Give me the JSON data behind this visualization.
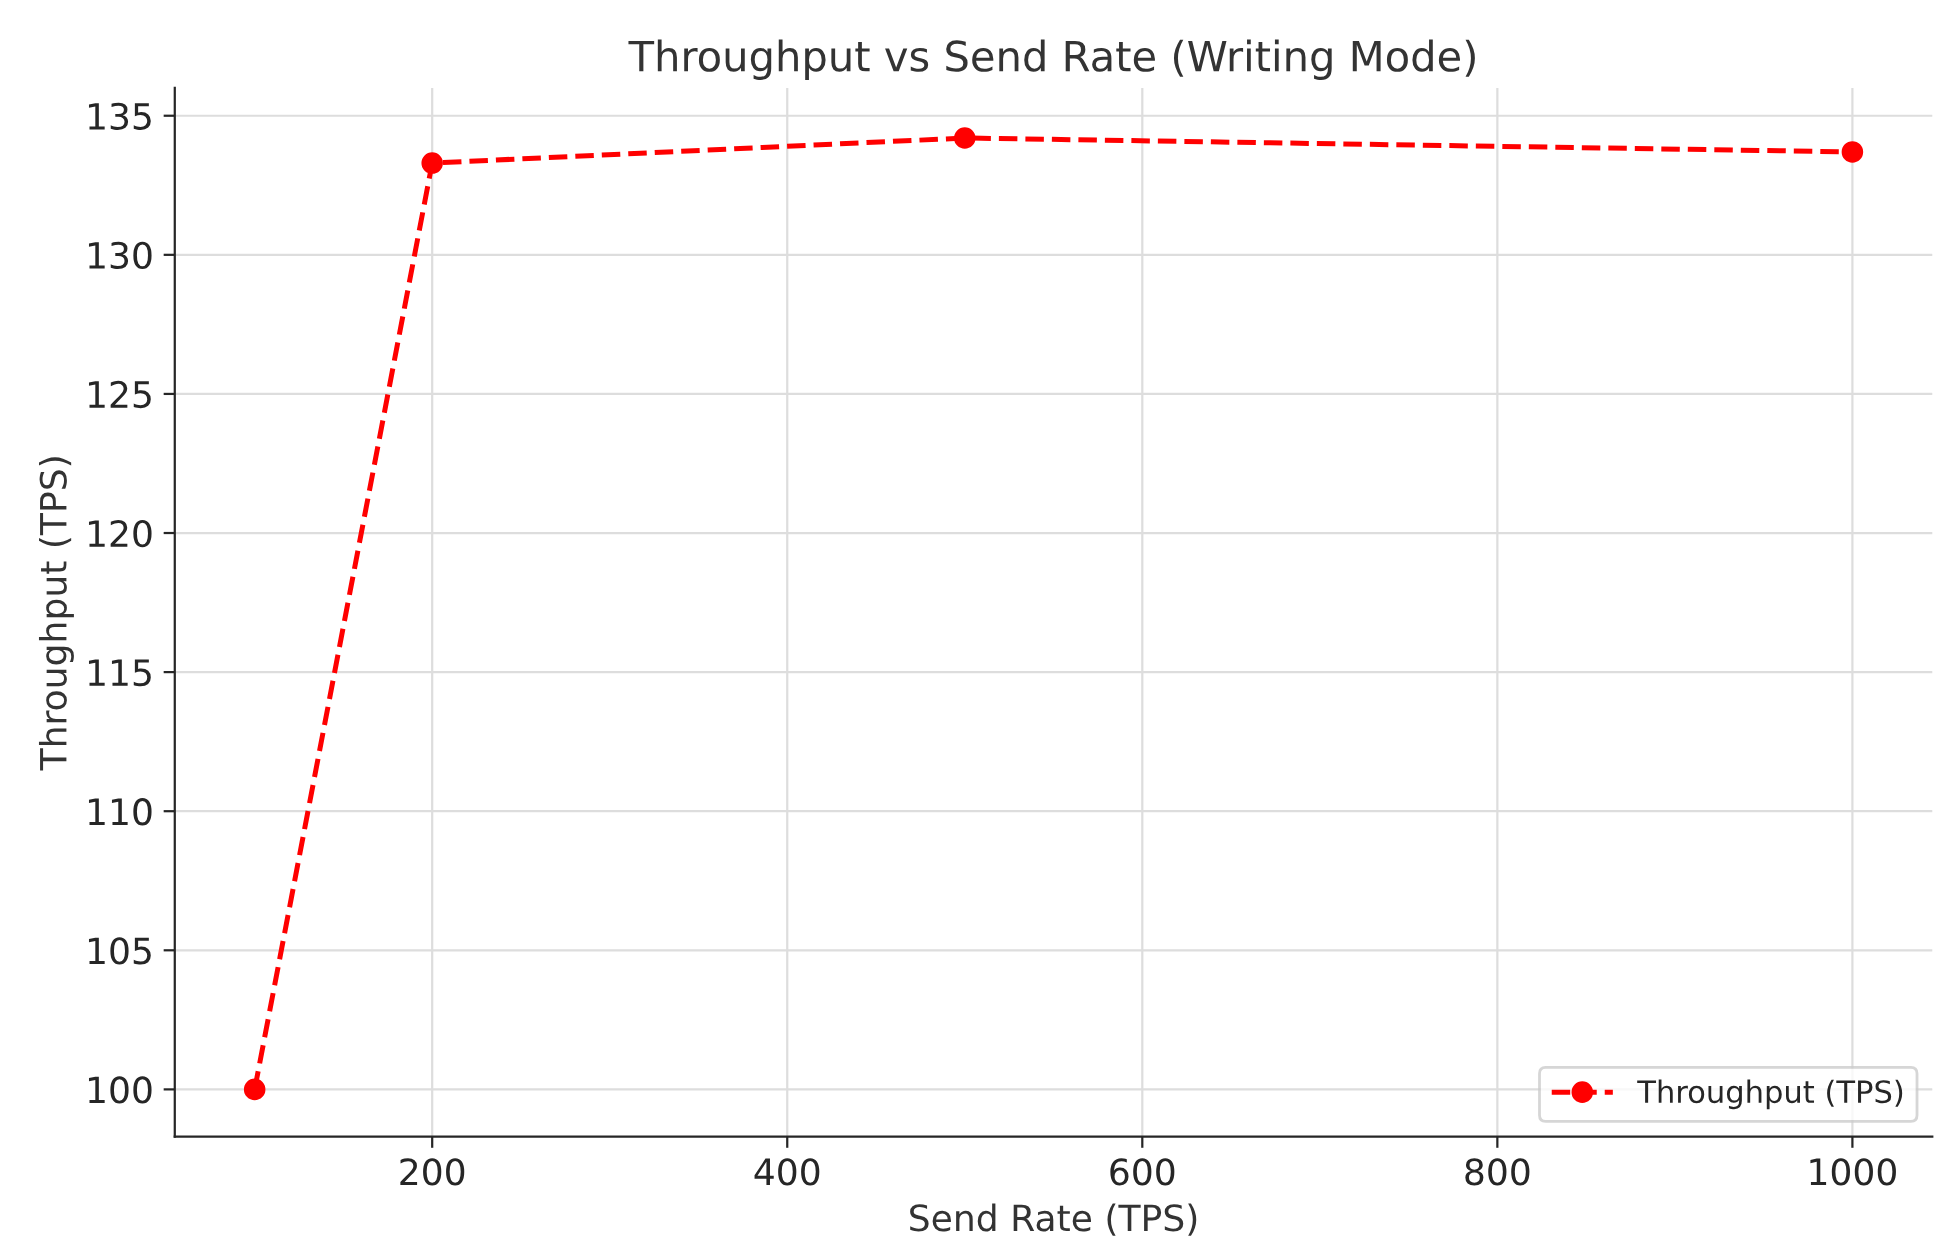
{
  "chart_data": {
    "type": "line",
    "title": "Throughput vs Send Rate (Writing Mode)",
    "xlabel": "Send Rate (TPS)",
    "ylabel": "Throughput (TPS)",
    "x": [
      100,
      200,
      500,
      1000
    ],
    "series": [
      {
        "name": "Throughput (TPS)",
        "color": "#ff0000",
        "values": [
          100,
          133.3,
          134.2,
          133.7
        ]
      }
    ],
    "xlim": [
      55,
      1045
    ],
    "xticks": [
      200,
      400,
      600,
      800,
      1000
    ],
    "ylim": [
      98.3,
      136
    ],
    "yticks": [
      100,
      105,
      110,
      115,
      120,
      125,
      130,
      135
    ],
    "grid": true,
    "legend": "lower right",
    "marker": "circle",
    "line_style": "dashed"
  }
}
